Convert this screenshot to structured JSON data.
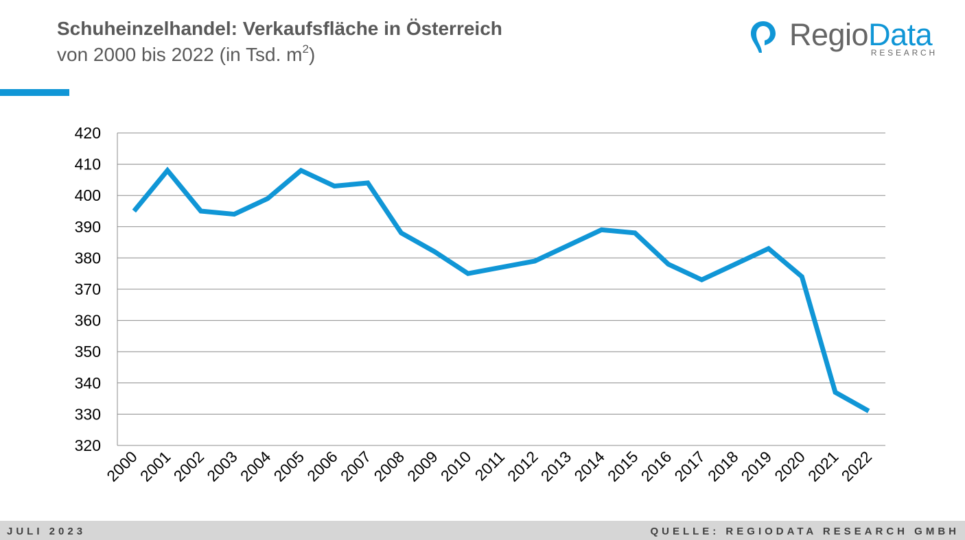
{
  "header": {
    "title": "Schuheinzelhandel: Verkaufsfläche in Österreich",
    "subtitle": "von 2000 bis 2022 (in Tsd. m",
    "subtitle_sup": "2",
    "subtitle_end": ")"
  },
  "logo": {
    "regio": "Regio",
    "data": "Data",
    "sub": "RESEARCH"
  },
  "footer": {
    "date": "JULI 2023",
    "source": "QUELLE: REGIODATA RESEARCH GMBH"
  },
  "colors": {
    "accent": "#1096d6",
    "text": "#595959",
    "grid": "#8c8c8c",
    "footer_bg": "#d6d6d6"
  },
  "chart_data": {
    "type": "line",
    "categories": [
      "2000",
      "2001",
      "2002",
      "2003",
      "2004",
      "2005",
      "2006",
      "2007",
      "2008",
      "2009",
      "2010",
      "2011",
      "2012",
      "2013",
      "2014",
      "2015",
      "2016",
      "2017",
      "2018",
      "2019",
      "2020",
      "2021",
      "2022"
    ],
    "series": [
      {
        "values": [
          395,
          408,
          395,
          394,
          399,
          408,
          403,
          404,
          388,
          382,
          375,
          377,
          379,
          384,
          389,
          388,
          378,
          373,
          378,
          383,
          374,
          337,
          331
        ]
      }
    ],
    "ylim": [
      320,
      420
    ],
    "yticks": [
      320,
      330,
      340,
      350,
      360,
      370,
      380,
      390,
      400,
      410,
      420
    ],
    "grid": true,
    "line_color": "#1096d6",
    "xlabel": "",
    "ylabel": ""
  }
}
